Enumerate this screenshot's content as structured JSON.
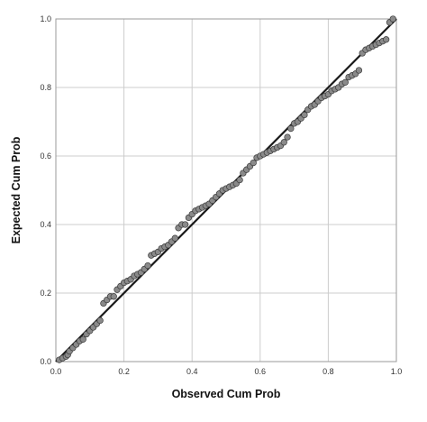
{
  "chart_data": {
    "type": "scatter",
    "xlabel": "Observed Cum Prob",
    "ylabel": "Expected Cum Prob",
    "xlim": [
      0,
      1
    ],
    "ylim": [
      0,
      1
    ],
    "x_ticks": [
      0.0,
      0.2,
      0.4,
      0.6,
      0.8,
      1.0
    ],
    "y_ticks": [
      0.0,
      0.2,
      0.4,
      0.6,
      0.8,
      1.0
    ],
    "x_tick_labels": [
      "0.0",
      "0.2",
      "0.4",
      "0.6",
      "0.8",
      "1.0"
    ],
    "y_tick_labels": [
      "0.0",
      "0.2",
      "0.4",
      "0.6",
      "0.8",
      "1.0"
    ],
    "grid": true,
    "reference_line": {
      "from": [
        0,
        0
      ],
      "to": [
        1,
        1
      ]
    },
    "point_color": "#8a8a8a",
    "point_edge_color": "#3a3a3a",
    "line_color": "#1a1a1a",
    "grid_color": "#cccccc",
    "points": [
      [
        0.01,
        0.005
      ],
      [
        0.02,
        0.01
      ],
      [
        0.03,
        0.015
      ],
      [
        0.035,
        0.02
      ],
      [
        0.04,
        0.03
      ],
      [
        0.05,
        0.04
      ],
      [
        0.06,
        0.05
      ],
      [
        0.07,
        0.06
      ],
      [
        0.08,
        0.065
      ],
      [
        0.09,
        0.08
      ],
      [
        0.1,
        0.09
      ],
      [
        0.11,
        0.1
      ],
      [
        0.12,
        0.11
      ],
      [
        0.13,
        0.12
      ],
      [
        0.14,
        0.17
      ],
      [
        0.15,
        0.18
      ],
      [
        0.16,
        0.19
      ],
      [
        0.17,
        0.19
      ],
      [
        0.18,
        0.21
      ],
      [
        0.19,
        0.22
      ],
      [
        0.2,
        0.23
      ],
      [
        0.21,
        0.235
      ],
      [
        0.22,
        0.24
      ],
      [
        0.23,
        0.25
      ],
      [
        0.24,
        0.255
      ],
      [
        0.25,
        0.26
      ],
      [
        0.26,
        0.27
      ],
      [
        0.27,
        0.28
      ],
      [
        0.28,
        0.31
      ],
      [
        0.29,
        0.315
      ],
      [
        0.3,
        0.32
      ],
      [
        0.31,
        0.33
      ],
      [
        0.32,
        0.335
      ],
      [
        0.33,
        0.34
      ],
      [
        0.34,
        0.35
      ],
      [
        0.35,
        0.36
      ],
      [
        0.36,
        0.39
      ],
      [
        0.37,
        0.4
      ],
      [
        0.38,
        0.4
      ],
      [
        0.39,
        0.42
      ],
      [
        0.4,
        0.43
      ],
      [
        0.41,
        0.44
      ],
      [
        0.42,
        0.445
      ],
      [
        0.43,
        0.45
      ],
      [
        0.44,
        0.455
      ],
      [
        0.45,
        0.46
      ],
      [
        0.46,
        0.47
      ],
      [
        0.47,
        0.48
      ],
      [
        0.48,
        0.49
      ],
      [
        0.49,
        0.5
      ],
      [
        0.5,
        0.505
      ],
      [
        0.51,
        0.51
      ],
      [
        0.52,
        0.515
      ],
      [
        0.53,
        0.52
      ],
      [
        0.54,
        0.53
      ],
      [
        0.55,
        0.55
      ],
      [
        0.56,
        0.56
      ],
      [
        0.57,
        0.57
      ],
      [
        0.58,
        0.58
      ],
      [
        0.59,
        0.595
      ],
      [
        0.6,
        0.6
      ],
      [
        0.61,
        0.605
      ],
      [
        0.62,
        0.61
      ],
      [
        0.63,
        0.615
      ],
      [
        0.64,
        0.62
      ],
      [
        0.65,
        0.625
      ],
      [
        0.66,
        0.63
      ],
      [
        0.67,
        0.64
      ],
      [
        0.68,
        0.655
      ],
      [
        0.69,
        0.68
      ],
      [
        0.7,
        0.695
      ],
      [
        0.71,
        0.7
      ],
      [
        0.72,
        0.71
      ],
      [
        0.73,
        0.72
      ],
      [
        0.74,
        0.735
      ],
      [
        0.75,
        0.745
      ],
      [
        0.76,
        0.75
      ],
      [
        0.77,
        0.76
      ],
      [
        0.78,
        0.77
      ],
      [
        0.79,
        0.775
      ],
      [
        0.8,
        0.78
      ],
      [
        0.81,
        0.79
      ],
      [
        0.82,
        0.795
      ],
      [
        0.83,
        0.8
      ],
      [
        0.84,
        0.81
      ],
      [
        0.85,
        0.815
      ],
      [
        0.86,
        0.83
      ],
      [
        0.87,
        0.835
      ],
      [
        0.88,
        0.84
      ],
      [
        0.89,
        0.85
      ],
      [
        0.9,
        0.9
      ],
      [
        0.91,
        0.91
      ],
      [
        0.92,
        0.915
      ],
      [
        0.93,
        0.92
      ],
      [
        0.94,
        0.925
      ],
      [
        0.95,
        0.93
      ],
      [
        0.96,
        0.935
      ],
      [
        0.97,
        0.94
      ],
      [
        0.98,
        0.99
      ],
      [
        0.99,
        1.0
      ]
    ]
  }
}
